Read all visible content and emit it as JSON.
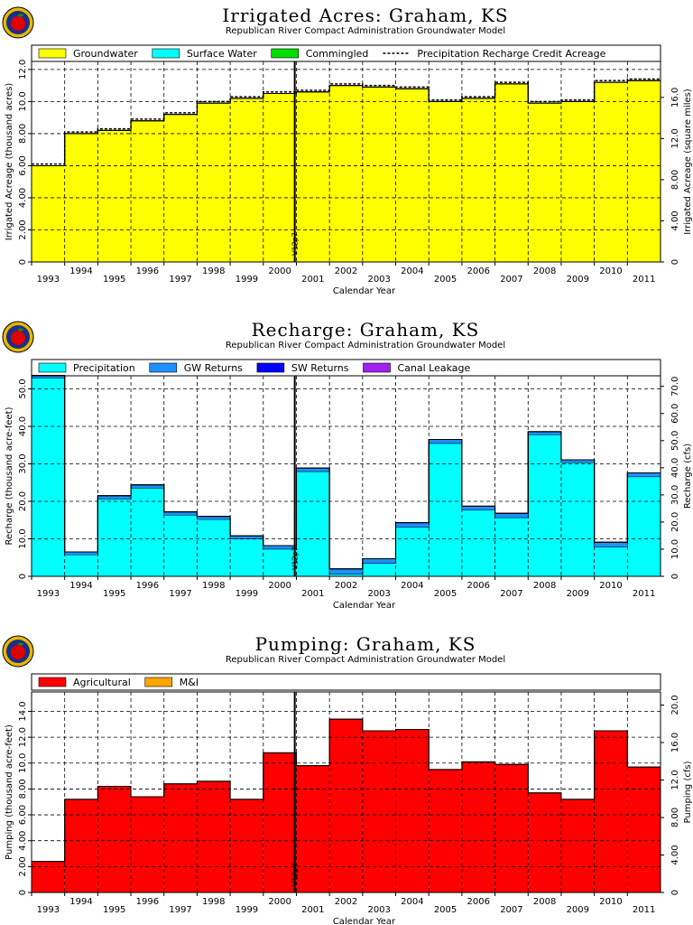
{
  "chart_data": [
    {
      "type": "area",
      "title": "Irrigated Acres: Graham, KS",
      "subtitle": "Republican River Compact Administration Groundwater Model",
      "xlabel": "Calendar Year",
      "ylabel": "Irrigated Acreage (thousand acres)",
      "y2label": "Irrigated Acreage (square miles)",
      "categories": [
        "1993",
        "1994",
        "1995",
        "1996",
        "1997",
        "1998",
        "1999",
        "2000",
        "2001",
        "2002",
        "2003",
        "2004",
        "2005",
        "2006",
        "2007",
        "2008",
        "2009",
        "2010",
        "2011"
      ],
      "ylim": [
        0,
        12.5
      ],
      "yticks": [
        "0",
        "2.00",
        "4.00",
        "6.00",
        "8.00",
        "10.0",
        "12.0"
      ],
      "y2lim": [
        0,
        19.5
      ],
      "y2ticks": [
        "0",
        "4.00",
        "8.00",
        "12.0",
        "16.0"
      ],
      "grid": true,
      "legend_position": "top",
      "vline": {
        "x_index": 8,
        "label": "V12p7"
      },
      "series": [
        {
          "name": "Groundwater",
          "color": "#ffff00",
          "values": [
            6.0,
            8.0,
            8.2,
            8.8,
            9.2,
            9.9,
            10.2,
            10.5,
            10.6,
            11.0,
            10.9,
            10.8,
            10.0,
            10.2,
            11.1,
            9.9,
            10.0,
            11.2,
            11.3
          ]
        },
        {
          "name": "Surface Water",
          "color": "#00ffff",
          "values": [
            0,
            0,
            0,
            0,
            0,
            0,
            0,
            0,
            0,
            0,
            0,
            0,
            0,
            0,
            0,
            0,
            0,
            0,
            0
          ]
        },
        {
          "name": "Commingled",
          "color": "#00dd00",
          "values": [
            0,
            0,
            0,
            0,
            0,
            0,
            0,
            0,
            0,
            0,
            0,
            0,
            0,
            0,
            0,
            0,
            0,
            0,
            0
          ]
        },
        {
          "name": "Precipitation Recharge Credit Acreage",
          "style": "dashed",
          "values": [
            6.1,
            8.1,
            8.3,
            8.9,
            9.3,
            10.0,
            10.3,
            10.6,
            10.7,
            11.1,
            11.0,
            10.9,
            10.1,
            10.3,
            11.2,
            10.0,
            10.1,
            11.3,
            11.4
          ]
        }
      ]
    },
    {
      "type": "area",
      "title": "Recharge: Graham, KS",
      "subtitle": "Republican River Compact Administration Groundwater Model",
      "xlabel": "Calendar Year",
      "ylabel": "Recharge (thousand acre-feet)",
      "y2label": "Recharge (cfs)",
      "categories": [
        "1993",
        "1994",
        "1995",
        "1996",
        "1997",
        "1998",
        "1999",
        "2000",
        "2001",
        "2002",
        "2003",
        "2004",
        "2005",
        "2006",
        "2007",
        "2008",
        "2009",
        "2010",
        "2011"
      ],
      "ylim": [
        0,
        53.5
      ],
      "yticks": [
        "0",
        "10.0",
        "20.0",
        "30.0",
        "40.0",
        "50.0"
      ],
      "y2lim": [
        0,
        73.9
      ],
      "y2ticks": [
        "0",
        "10.0",
        "20.0",
        "30.0",
        "40.0",
        "50.0",
        "60.0",
        "70.0"
      ],
      "grid": true,
      "legend_position": "top",
      "vline": {
        "x_index": 8,
        "label": "V12p7"
      },
      "series": [
        {
          "name": "Precipitation",
          "color": "#00ffff",
          "values": [
            53.0,
            5.8,
            20.7,
            23.6,
            16.4,
            15.2,
            10.0,
            7.3,
            28.0,
            0.6,
            3.5,
            13.1,
            35.5,
            17.7,
            15.7,
            37.8,
            30.4,
            7.9,
            26.6
          ]
        },
        {
          "name": "GW Returns",
          "color": "#1e90ff",
          "values": [
            0.6,
            0.7,
            0.8,
            0.8,
            0.8,
            0.8,
            0.8,
            0.9,
            0.9,
            1.4,
            1.2,
            1.2,
            1.0,
            1.0,
            1.1,
            0.8,
            0.7,
            1.2,
            1.0
          ]
        },
        {
          "name": "SW Returns",
          "color": "#0000ff",
          "values": [
            0,
            0,
            0,
            0,
            0,
            0,
            0,
            0,
            0,
            0,
            0,
            0,
            0,
            0,
            0,
            0,
            0,
            0,
            0
          ]
        },
        {
          "name": "Canal Leakage",
          "color": "#a020f0",
          "values": [
            0,
            0,
            0,
            0,
            0,
            0,
            0,
            0,
            0,
            0,
            0,
            0,
            0,
            0,
            0,
            0,
            0,
            0,
            0
          ]
        }
      ]
    },
    {
      "type": "area",
      "title": "Pumping: Graham, KS",
      "subtitle": "Republican River Compact Administration Groundwater Model",
      "xlabel": "Calendar Year",
      "ylabel": "Pumping (thousand acre-feet)",
      "y2label": "Pumping (cfs)",
      "categories": [
        "1993",
        "1994",
        "1995",
        "1996",
        "1997",
        "1998",
        "1999",
        "2000",
        "2001",
        "2002",
        "2003",
        "2004",
        "2005",
        "2006",
        "2007",
        "2008",
        "2009",
        "2010",
        "2011"
      ],
      "ylim": [
        0,
        15.5
      ],
      "yticks": [
        "0",
        "2.00",
        "4.00",
        "6.00",
        "8.00",
        "10.0",
        "12.0",
        "14.0"
      ],
      "y2lim": [
        0,
        21.4
      ],
      "y2ticks": [
        "0",
        "4.00",
        "8.00",
        "12.0",
        "16.0",
        "20.0"
      ],
      "grid": true,
      "legend_position": "top",
      "vline": {
        "x_index": 8,
        "label": "V12p7"
      },
      "series": [
        {
          "name": "Agricultural",
          "color": "#ff0000",
          "values": [
            2.4,
            7.2,
            8.2,
            7.4,
            8.4,
            8.6,
            7.2,
            10.8,
            9.8,
            13.4,
            12.5,
            12.6,
            9.5,
            10.1,
            9.9,
            7.7,
            7.2,
            12.5,
            9.7
          ]
        },
        {
          "name": "M&I",
          "color": "#ffa500",
          "values": [
            0,
            0,
            0,
            0,
            0,
            0,
            0,
            0,
            0,
            0,
            0,
            0,
            0,
            0,
            0,
            0,
            0,
            0,
            0
          ]
        }
      ]
    }
  ]
}
